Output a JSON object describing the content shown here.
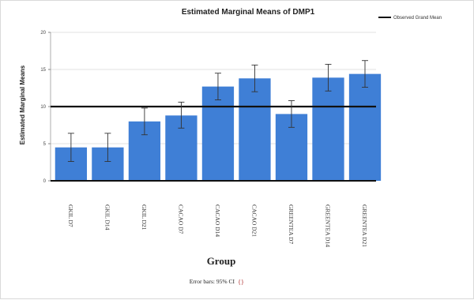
{
  "chart_data": {
    "type": "bar",
    "title": "Estimated Marginal Means of DMP1",
    "ylabel": "Estimated Marginal Means",
    "xlabel": "Group",
    "ylim": [
      0,
      20
    ],
    "yticks": [
      0,
      5,
      10,
      15,
      20
    ],
    "categories": [
      "GKIL D7",
      "GKIL D14",
      "GKIL D21",
      "CACAO D7",
      "CACAO D14",
      "CACAO D21",
      "GREENTEA D7",
      "GREENTEA D14",
      "GREENTEA D21"
    ],
    "values": [
      4.5,
      4.5,
      8.0,
      8.8,
      12.7,
      13.8,
      9.0,
      13.9,
      14.4
    ],
    "error_low": [
      2.6,
      2.6,
      6.2,
      7.1,
      10.9,
      12.0,
      7.2,
      12.1,
      12.6
    ],
    "error_high": [
      6.4,
      6.4,
      9.8,
      10.6,
      14.5,
      15.6,
      10.8,
      15.7,
      16.2
    ],
    "reference_line": {
      "value": 10,
      "name": "Observed Grand Mean"
    },
    "bar_color": "#3f7fd6",
    "grid": true,
    "legend": "top-right",
    "footnote": "Error bars: 95% CI"
  }
}
